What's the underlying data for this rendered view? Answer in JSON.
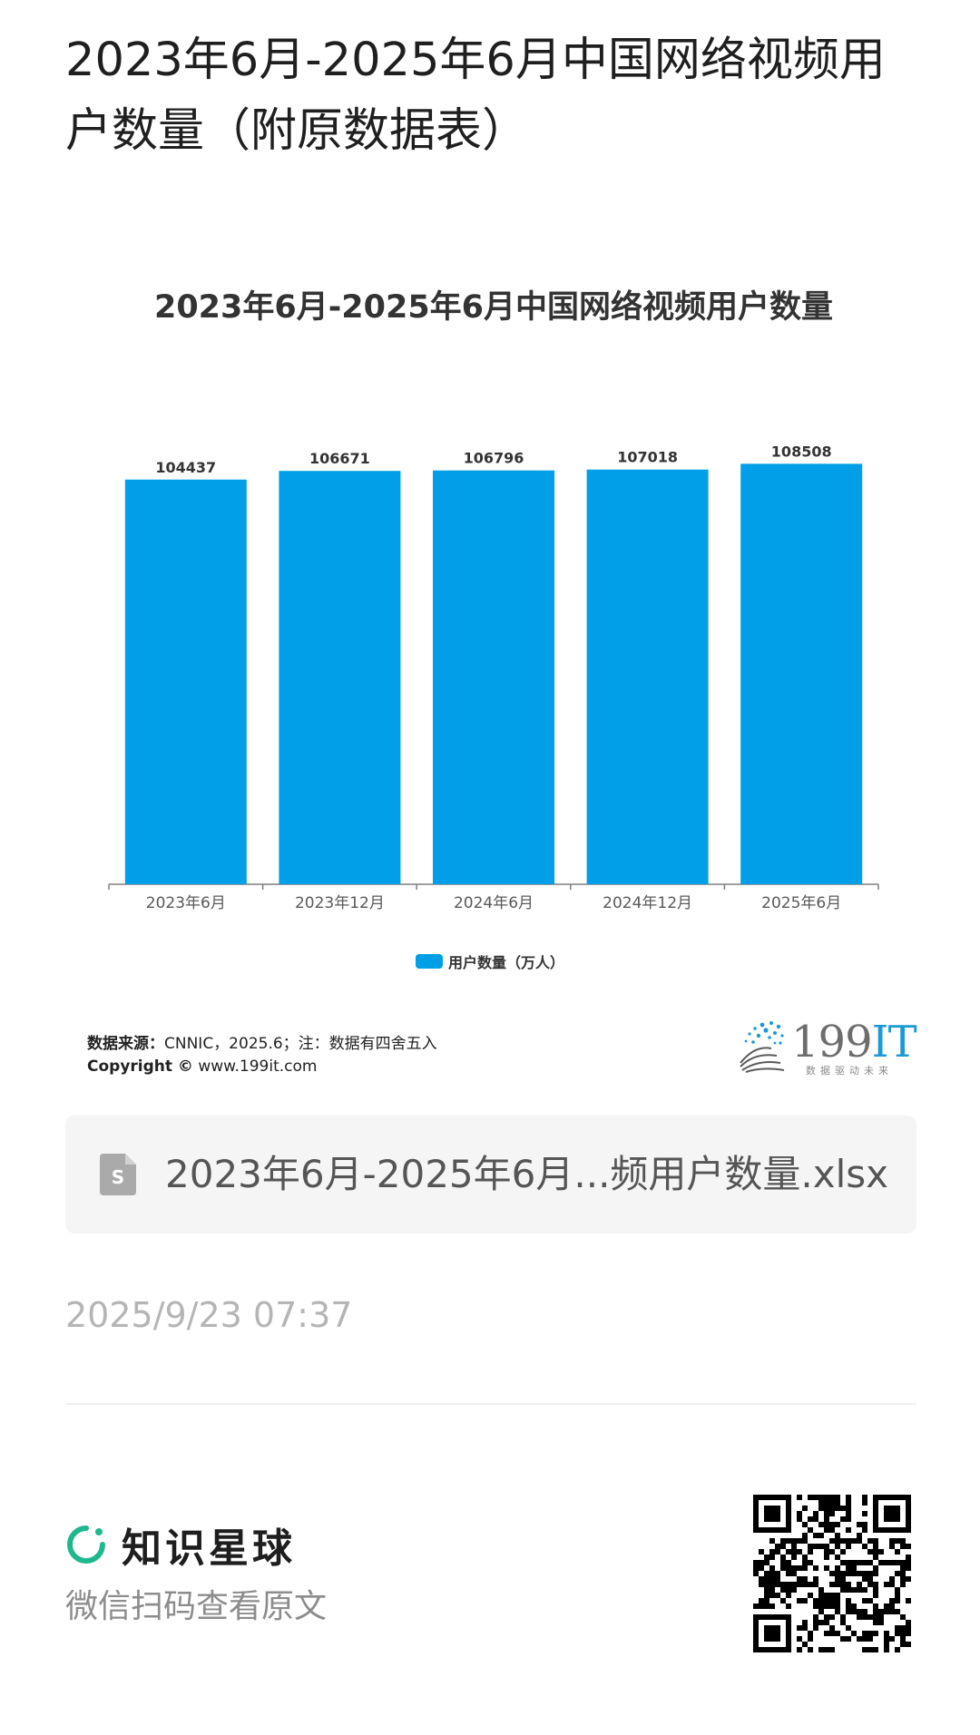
{
  "post": {
    "title": "2023年6月-2025年6月中国网络视频用户数量（附原数据表）"
  },
  "chart_data": {
    "type": "bar",
    "title": "2023年6月-2025年6月中国网络视频用户数量",
    "categories": [
      "2023年6月",
      "2023年12月",
      "2024年6月",
      "2024年12月",
      "2025年6月"
    ],
    "series": [
      {
        "name": "用户数量（万人）",
        "values": [
          104437,
          106671,
          106796,
          107018,
          108508
        ]
      }
    ],
    "ylim": [
      0,
      110000
    ],
    "bar_color": "#009fe8",
    "grid": false,
    "legend": "bottom-center"
  },
  "chart_footer": {
    "source_label": "数据来源：",
    "source_text": "CNNIC，2025.6；注：数据有四舍五入",
    "copyright_label": "Copyright ©",
    "copyright_site": "www.199it.com",
    "logo_number": "199",
    "logo_letters": "IT",
    "logo_tagline": "数据驱动未来"
  },
  "attachment": {
    "icon": "spreadsheet-file-icon",
    "file_name": "2023年6月-2025年6月...频用户数量.xlsx"
  },
  "meta": {
    "timestamp": "2025/9/23 07:37"
  },
  "footer": {
    "brand_icon": "planet-ring-icon",
    "brand_name": "知识星球",
    "scan_hint": "微信扫码查看原文",
    "qr_icon": "qr-code-icon"
  },
  "colors": {
    "bar": "#009fe8",
    "brand_green": "#1fb88e",
    "logo_blue": "#1b9ad7"
  }
}
